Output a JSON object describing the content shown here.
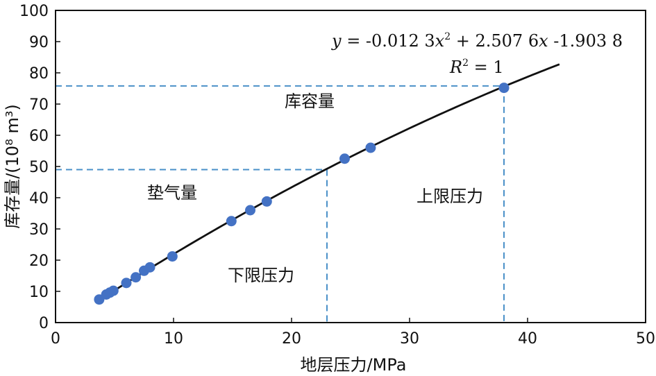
{
  "chart_data": {
    "type": "scatter",
    "xlabel": "地层压力/MPa",
    "ylabel": "库存量/(10⁸ m³)",
    "xlim": [
      0,
      50
    ],
    "ylim": [
      0,
      100
    ],
    "x_ticks": [
      0,
      10,
      20,
      30,
      40,
      50
    ],
    "y_ticks": [
      0,
      10,
      20,
      30,
      40,
      50,
      60,
      70,
      80,
      90,
      100
    ],
    "grid": false,
    "points": [
      {
        "x": 3.7,
        "y": 7.4
      },
      {
        "x": 4.3,
        "y": 9.0
      },
      {
        "x": 4.6,
        "y": 9.6
      },
      {
        "x": 4.9,
        "y": 10.2
      },
      {
        "x": 6.0,
        "y": 12.7
      },
      {
        "x": 6.8,
        "y": 14.5
      },
      {
        "x": 7.5,
        "y": 16.6
      },
      {
        "x": 8.0,
        "y": 17.7
      },
      {
        "x": 9.9,
        "y": 21.2
      },
      {
        "x": 14.9,
        "y": 32.5
      },
      {
        "x": 16.5,
        "y": 36.0
      },
      {
        "x": 17.9,
        "y": 38.8
      },
      {
        "x": 24.5,
        "y": 52.5
      },
      {
        "x": 26.7,
        "y": 56.0
      },
      {
        "x": 38.0,
        "y": 75.2
      }
    ],
    "fit_curve": {
      "a": -0.0123,
      "b": 2.5076,
      "c": -1.9038,
      "x_range": [
        3.7,
        42.7
      ]
    },
    "reference_lines": [
      {
        "x": 23.0,
        "y": 49.0
      },
      {
        "x": 38.0,
        "y": 75.8
      }
    ],
    "annotations": {
      "equation_y": "y",
      "equation_eq": " = -0.012 3",
      "equation_x1": "x",
      "equation_sup": "2",
      "equation_mid": " + 2.507 6",
      "equation_x2": "x",
      "equation_end": " -1.903 8",
      "r2_R": "R",
      "r2_sup": "2",
      "r2_val": " = 1",
      "capacity": "库容量",
      "cushion_gas": "垫气量",
      "upper_pressure": "上限压力",
      "lower_pressure": "下限压力"
    },
    "colors": {
      "marker": "#4472C4",
      "curve": "#111111",
      "reference": "#4A90C8"
    }
  }
}
